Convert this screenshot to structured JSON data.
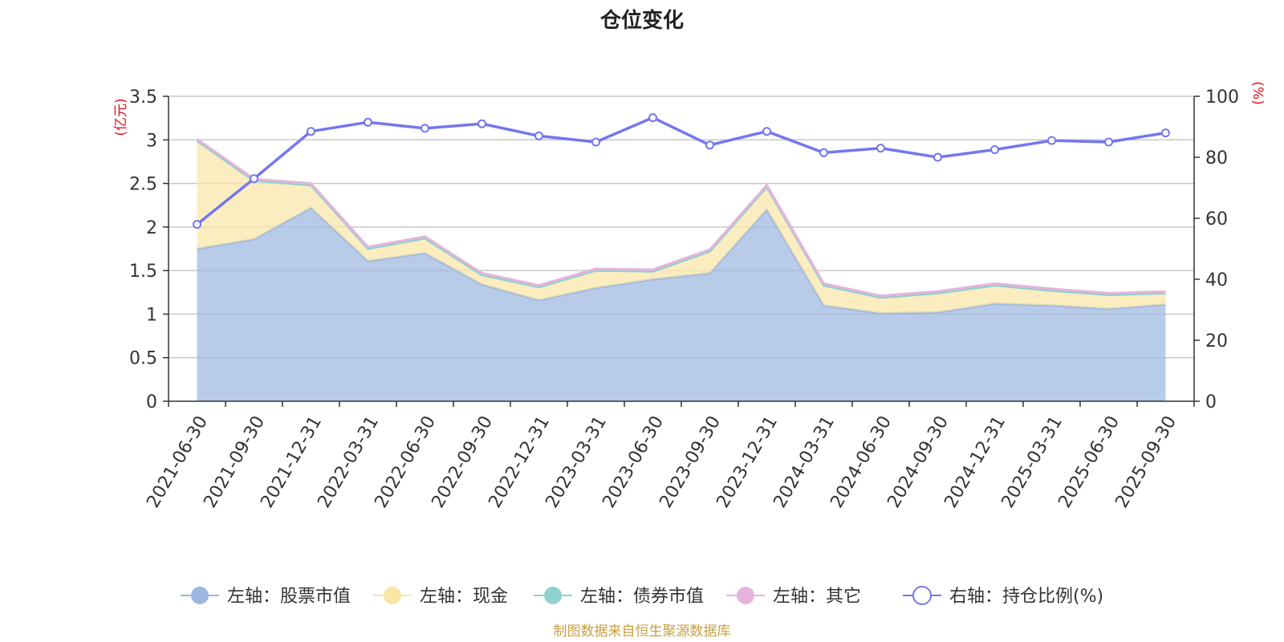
{
  "chart_data": {
    "type": "area",
    "title": "仓位变化",
    "left_axis_unit": "(亿元)",
    "right_axis_unit": "(%)",
    "left_ylim": [
      0,
      3.5
    ],
    "left_yticks": [
      "0",
      "0.5",
      "1",
      "1.5",
      "2",
      "2.5",
      "3",
      "3.5"
    ],
    "right_ylim": [
      0,
      100
    ],
    "right_yticks": [
      "0",
      "20",
      "40",
      "60",
      "80",
      "100"
    ],
    "categories": [
      "2021-06-30",
      "2021-09-30",
      "2021-12-31",
      "2022-03-31",
      "2022-06-30",
      "2022-09-30",
      "2022-12-31",
      "2023-03-31",
      "2023-06-30",
      "2023-09-30",
      "2023-12-31",
      "2024-03-31",
      "2024-06-30",
      "2024-09-30",
      "2024-12-31",
      "2025-03-31",
      "2025-06-30",
      "2025-09-30"
    ],
    "series": [
      {
        "name": "左轴：股票市值",
        "axis": "left",
        "stacked": true,
        "color": "#9cb8e2",
        "values": [
          1.75,
          1.86,
          2.22,
          1.61,
          1.7,
          1.34,
          1.16,
          1.3,
          1.4,
          1.47,
          2.2,
          1.1,
          1.01,
          1.02,
          1.12,
          1.1,
          1.06,
          1.11
        ]
      },
      {
        "name": "左轴：现金",
        "axis": "left",
        "stacked": true,
        "color": "#f9e6a6",
        "values": [
          1.24,
          0.67,
          0.26,
          0.14,
          0.17,
          0.11,
          0.15,
          0.2,
          0.09,
          0.25,
          0.26,
          0.23,
          0.18,
          0.22,
          0.21,
          0.17,
          0.16,
          0.13
        ]
      },
      {
        "name": "左轴：债券市值",
        "axis": "left",
        "stacked": true,
        "color": "#8fd1d0",
        "values": [
          0,
          0,
          0,
          0,
          0,
          0,
          0,
          0,
          0,
          0,
          0,
          0,
          0,
          0,
          0,
          0,
          0,
          0
        ]
      },
      {
        "name": "左轴：其它",
        "axis": "left",
        "stacked": true,
        "color": "#e6b3dc",
        "values": [
          0.02,
          0.02,
          0.02,
          0.02,
          0.02,
          0.02,
          0.02,
          0.02,
          0.02,
          0.02,
          0.02,
          0.02,
          0.02,
          0.02,
          0.02,
          0.02,
          0.02,
          0.02
        ]
      },
      {
        "name": "右轴：持仓比例(%)",
        "axis": "right",
        "stacked": false,
        "color": "#7477ee",
        "values": [
          58,
          73,
          88.5,
          91.5,
          89.5,
          91,
          87,
          85,
          93,
          84,
          88.5,
          81.5,
          83,
          80,
          82.5,
          85.5,
          85,
          88
        ]
      }
    ],
    "grid": true,
    "legend_position": "bottom-center",
    "source_note": "制图数据来自恒生聚源数据库"
  }
}
